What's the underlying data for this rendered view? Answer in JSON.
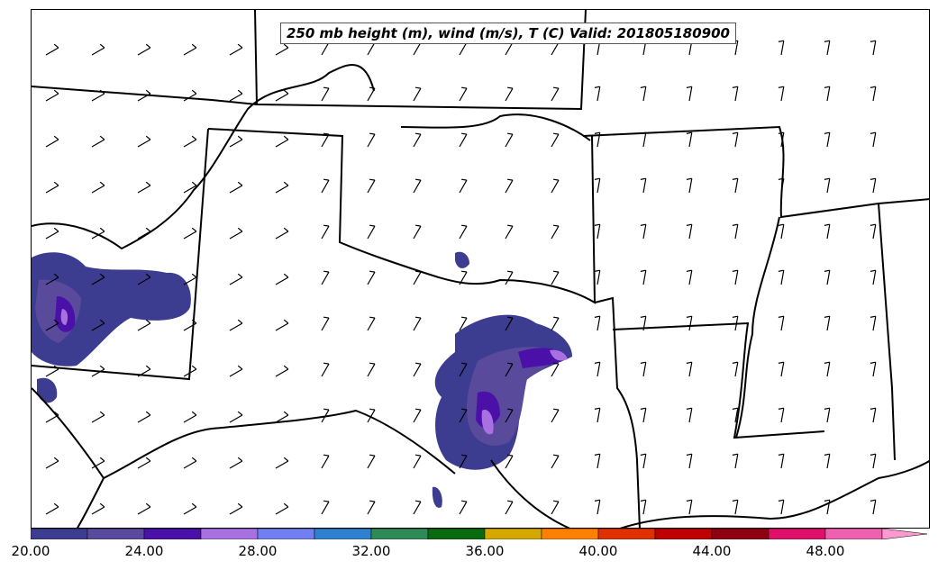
{
  "title": "250 mb height (m), wind (m/s), T (C) Valid: 201805180900",
  "colorbar": {
    "tick_labels": [
      "20.00",
      "24.00",
      "28.00",
      "32.00",
      "36.00",
      "40.00",
      "44.00",
      "48.00"
    ],
    "levels_min": 20,
    "levels_step": 2,
    "extend": "max",
    "colors": [
      "#3c3c90",
      "#5a4a9c",
      "#4a10a8",
      "#a870e0",
      "#7080f0",
      "#3080d0",
      "#2e8b57",
      "#0a6a10",
      "#d4a800",
      "#ff8000",
      "#e03000",
      "#c00000",
      "#900010",
      "#e0106a",
      "#f060b0",
      "#ff9ad0"
    ]
  },
  "chart_data": {
    "type": "heatmap",
    "title": "250 mb height (m), wind (m/s), T (C) Valid: 201805180900",
    "colorbar_ticks": [
      20,
      24,
      28,
      32,
      36,
      40,
      44,
      48
    ],
    "colorbar_range": [
      20,
      52
    ],
    "legend": "bottom colorbar",
    "fields": [
      "wind speed shading",
      "wind barbs",
      "state boundaries"
    ]
  }
}
